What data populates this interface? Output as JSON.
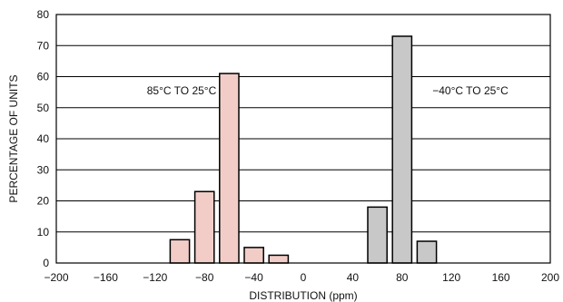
{
  "chart_data": {
    "type": "bar",
    "title": "",
    "xlabel": "DISTRIBUTION (ppm)",
    "ylabel": "PERCENTAGE OF UNITS",
    "xlim": [
      -200,
      200
    ],
    "ylim": [
      0,
      80
    ],
    "x_ticks": [
      -200,
      -160,
      -120,
      -80,
      -40,
      0,
      40,
      80,
      120,
      160,
      200
    ],
    "x_tick_labels": [
      "−200",
      "−160",
      "−120",
      "−80",
      "−40",
      "0",
      "40",
      "80",
      "120",
      "160",
      "200"
    ],
    "y_ticks": [
      0,
      10,
      20,
      30,
      40,
      50,
      60,
      70,
      80
    ],
    "grid": "horizontal",
    "bin_width": 20,
    "series": [
      {
        "name": "85°C TO 25°C",
        "color": "#f2cdc8",
        "x": [
          -100,
          -80,
          -60,
          -40,
          -20
        ],
        "values": [
          7.5,
          23,
          61,
          5,
          2.5
        ]
      },
      {
        "name": "−40°C TO 25°C",
        "color": "#c8c8c8",
        "x": [
          60,
          80,
          100
        ],
        "values": [
          18,
          73,
          7
        ]
      }
    ]
  }
}
